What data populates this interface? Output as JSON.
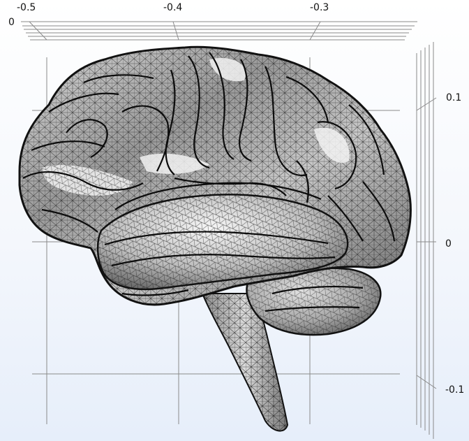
{
  "view": {
    "top_axis_ticks": [
      "-0.5",
      "-0.4",
      "-0.3"
    ],
    "top_axis_zero": "0",
    "right_axis_ticks": [
      "0.1",
      "0",
      "-0.1"
    ]
  },
  "model": {
    "mesh_color": "#111111",
    "surface_light": "#f4f4f4",
    "surface_mid": "#b5b5b5",
    "surface_dark": "#5a5a5a",
    "gridline_color": "#8a8a8a"
  }
}
